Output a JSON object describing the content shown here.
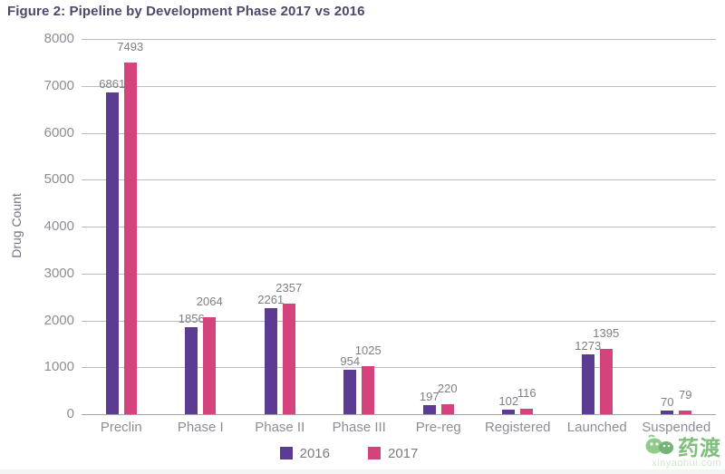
{
  "figure": {
    "title": "Figure 2: Pipeline by Development Phase 2017 vs 2016"
  },
  "chart_data": {
    "type": "bar",
    "title": "Figure 2: Pipeline by Development Phase 2017 vs 2016",
    "xlabel": "",
    "ylabel": "Drug Count",
    "ylim": [
      0,
      8000
    ],
    "ytick_step": 1000,
    "yticks": [
      0,
      1000,
      2000,
      3000,
      4000,
      5000,
      6000,
      7000,
      8000
    ],
    "grid": "horizontal",
    "legend_position": "bottom-center",
    "bar_value_labels": true,
    "categories": [
      "Preclin",
      "Phase I",
      "Phase II",
      "Phase III",
      "Pre-reg",
      "Registered",
      "Launched",
      "Suspended"
    ],
    "series": [
      {
        "name": "2016",
        "color": "#5c3c90",
        "values": [
          6861,
          1856,
          2261,
          954,
          197,
          102,
          1273,
          70
        ]
      },
      {
        "name": "2017",
        "color": "#d4437b",
        "values": [
          7493,
          2064,
          2357,
          1025,
          220,
          116,
          1395,
          79
        ]
      }
    ]
  },
  "watermark": {
    "brand": "药渡",
    "url_text": "xinyaohui.com",
    "logo_icon": "green-chat-bubbles-icon",
    "color": "#67b564"
  },
  "colors": {
    "title_text": "#4c496a",
    "axis_text": "#8d8d96",
    "value_label_text": "#7e7e87",
    "gridline": "#bcbcc1",
    "axis_line": "#a3a3a9",
    "series_2016": "#5c3c90",
    "series_2017": "#d4437b",
    "background": "#ffffff"
  }
}
